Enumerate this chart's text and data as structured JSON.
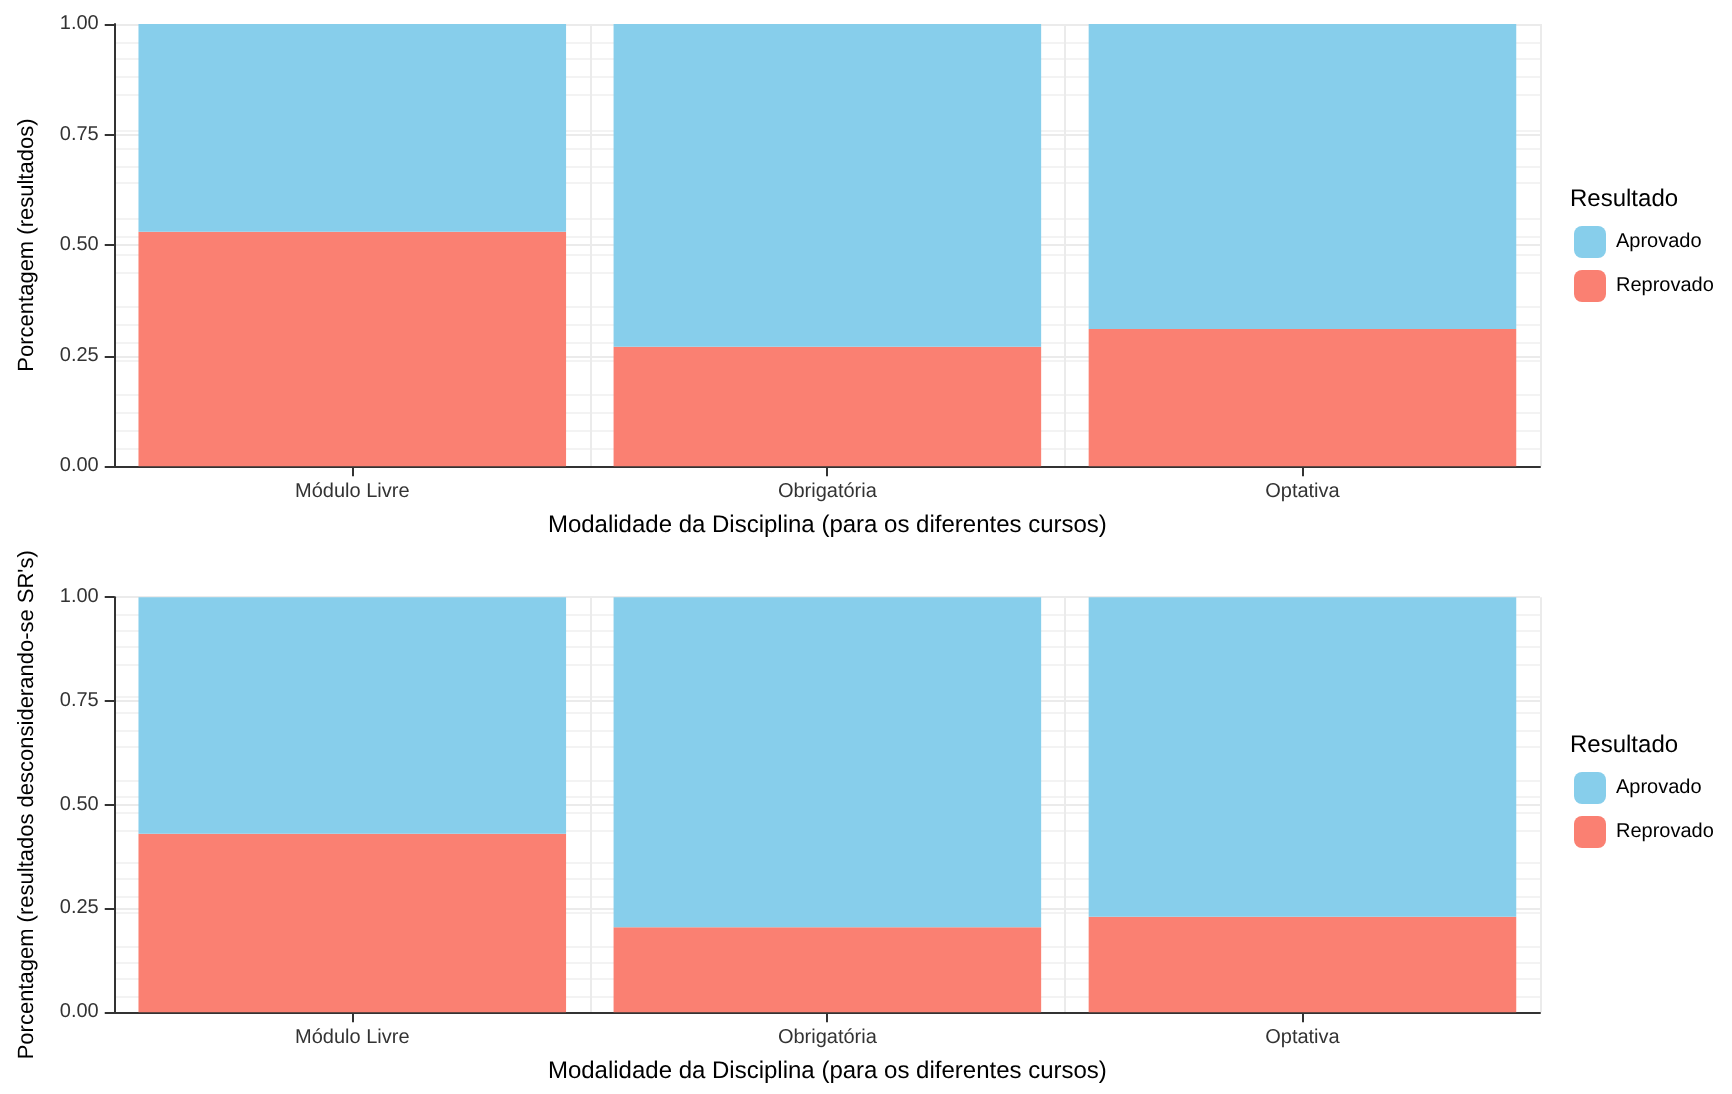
{
  "chart_data": [
    {
      "type": "bar",
      "stacked": true,
      "xlabel": "Modalidade da Disciplina (para os diferentes cursos)",
      "ylabel": "Porcentagem (resultados)",
      "legend_title": "Resultado",
      "legend": "right",
      "grid": true,
      "categories": [
        "Módulo Livre",
        "Obrigatória",
        "Optativa"
      ],
      "series": [
        {
          "name": "Reprovado",
          "color": "#fa8072",
          "values": [
            0.53,
            0.27,
            0.31
          ]
        },
        {
          "name": "Aprovado",
          "color": "#87ceeb",
          "values": [
            0.47,
            0.73,
            0.69
          ]
        }
      ],
      "ylim": [
        0,
        1
      ],
      "yticks": [
        {
          "value": 0,
          "label": "0.00"
        },
        {
          "value": 0.25,
          "label": "0.25"
        },
        {
          "value": 0.5,
          "label": "0.50"
        },
        {
          "value": 0.75,
          "label": "0.75"
        },
        {
          "value": 1,
          "label": "1.00"
        }
      ]
    },
    {
      "type": "bar",
      "stacked": true,
      "xlabel": "Modalidade da Disciplina (para os diferentes cursos)",
      "ylabel": "Porcentagem (resultados desconsiderando-se SR's)",
      "legend_title": "Resultado",
      "legend": "right",
      "grid": true,
      "categories": [
        "Módulo Livre",
        "Obrigatória",
        "Optativa"
      ],
      "series": [
        {
          "name": "Reprovado",
          "color": "#fa8072",
          "values": [
            0.43,
            0.205,
            0.23
          ]
        },
        {
          "name": "Aprovado",
          "color": "#87ceeb",
          "values": [
            0.57,
            0.795,
            0.77
          ]
        }
      ],
      "ylim": [
        0,
        1
      ],
      "yticks": [
        {
          "value": 0,
          "label": "0.00"
        },
        {
          "value": 0.25,
          "label": "0.25"
        },
        {
          "value": 0.5,
          "label": "0.50"
        },
        {
          "value": 0.75,
          "label": "0.75"
        },
        {
          "value": 1,
          "label": "1.00"
        }
      ]
    }
  ]
}
